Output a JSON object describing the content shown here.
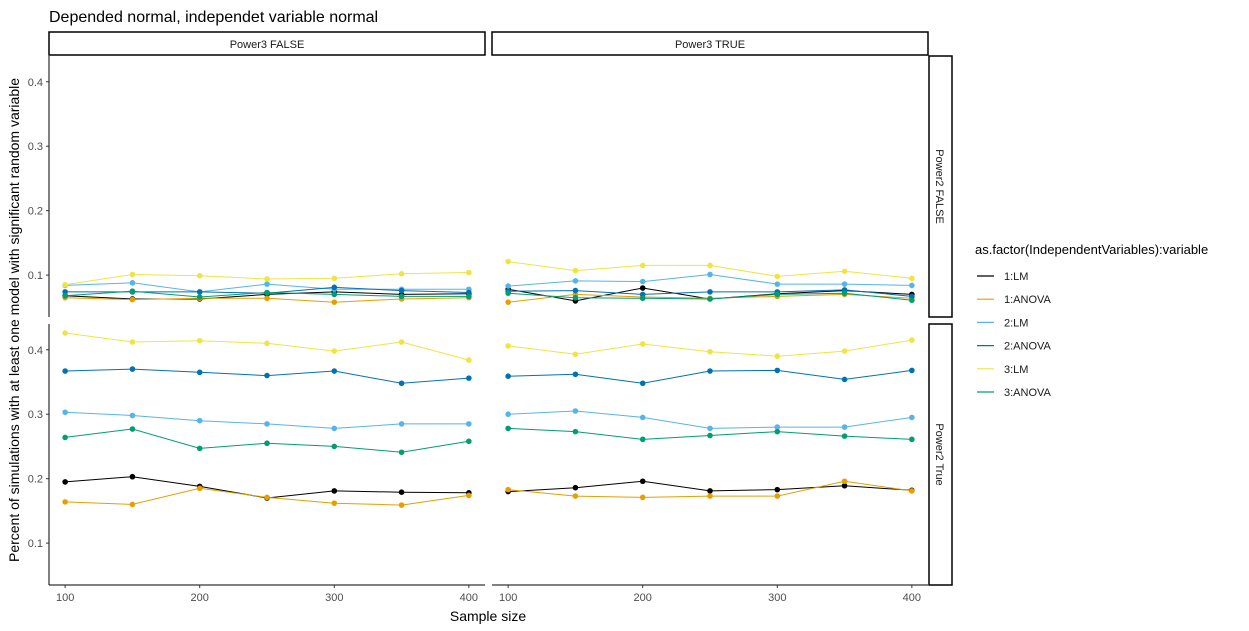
{
  "chart_data": {
    "type": "line",
    "title": "Depended normal, independet variable normal",
    "xlabel": "Sample size",
    "ylabel": "Percent of simulations with at least one model with significant random variable",
    "x": [
      100,
      150,
      200,
      250,
      300,
      350,
      400
    ],
    "x_ticks": [
      100,
      200,
      300,
      400
    ],
    "xlim": [
      88,
      412
    ],
    "ylim": [
      0.035,
      0.44
    ],
    "y_ticks": [
      0.1,
      0.2,
      0.3,
      0.4
    ],
    "grid": false,
    "legend_position": "right",
    "legend": {
      "title": "as.factor(IndependentVariables):variable",
      "entries": [
        {
          "label": "1:LM",
          "color": "#000000"
        },
        {
          "label": "1:ANOVA",
          "color": "#E69F00"
        },
        {
          "label": "2:LM",
          "color": "#56B4E9"
        },
        {
          "label": "2:ANOVA",
          "color": "#0072B2"
        },
        {
          "label": "3:LM",
          "color": "#F0E442"
        },
        {
          "label": "3:ANOVA",
          "color": "#009E73"
        }
      ]
    },
    "facets": {
      "columns": [
        "Power3 FALSE",
        "Power3 TRUE"
      ],
      "rows": [
        "Power2 FALSE",
        "Power2 True"
      ],
      "panels": [
        {
          "col": 0,
          "row": 0,
          "series": [
            {
              "name": "1:LM",
              "values": [
                0.068,
                0.063,
                0.063,
                0.07,
                0.074,
                0.07,
                0.071
              ]
            },
            {
              "name": "1:ANOVA",
              "values": [
                0.065,
                0.062,
                0.064,
                0.064,
                0.058,
                0.063,
                0.065
              ]
            },
            {
              "name": "2:LM",
              "values": [
                0.084,
                0.088,
                0.074,
                0.086,
                0.078,
                0.078,
                0.078
              ]
            },
            {
              "name": "2:ANOVA",
              "values": [
                0.074,
                0.074,
                0.074,
                0.072,
                0.081,
                0.076,
                0.073
              ]
            },
            {
              "name": "3:LM",
              "values": [
                0.085,
                0.101,
                0.099,
                0.094,
                0.095,
                0.102,
                0.104
              ]
            },
            {
              "name": "3:ANOVA",
              "values": [
                0.068,
                0.075,
                0.066,
                0.073,
                0.07,
                0.067,
                0.067
              ]
            }
          ]
        },
        {
          "col": 1,
          "row": 0,
          "series": [
            {
              "name": "1:LM",
              "values": [
                0.078,
                0.06,
                0.08,
                0.063,
                0.071,
                0.076,
                0.07
              ]
            },
            {
              "name": "1:ANOVA",
              "values": [
                0.058,
                0.07,
                0.066,
                0.064,
                0.067,
                0.07,
                0.064
              ]
            },
            {
              "name": "2:LM",
              "values": [
                0.083,
                0.091,
                0.09,
                0.101,
                0.086,
                0.086,
                0.084
              ]
            },
            {
              "name": "2:ANOVA",
              "values": [
                0.075,
                0.076,
                0.07,
                0.074,
                0.074,
                0.077,
                0.067
              ]
            },
            {
              "name": "3:LM",
              "values": [
                0.121,
                0.107,
                0.115,
                0.115,
                0.098,
                0.106,
                0.095
              ]
            },
            {
              "name": "3:ANOVA",
              "values": [
                0.072,
                0.065,
                0.064,
                0.063,
                0.07,
                0.072,
                0.061
              ]
            }
          ]
        },
        {
          "col": 0,
          "row": 1,
          "series": [
            {
              "name": "1:LM",
              "values": [
                0.195,
                0.203,
                0.188,
                0.17,
                0.181,
                0.179,
                0.178
              ]
            },
            {
              "name": "1:ANOVA",
              "values": [
                0.164,
                0.16,
                0.185,
                0.171,
                0.162,
                0.159,
                0.174
              ]
            },
            {
              "name": "2:LM",
              "values": [
                0.303,
                0.298,
                0.29,
                0.285,
                0.278,
                0.285,
                0.285
              ]
            },
            {
              "name": "2:ANOVA",
              "values": [
                0.367,
                0.37,
                0.365,
                0.36,
                0.367,
                0.348,
                0.356
              ]
            },
            {
              "name": "3:LM",
              "values": [
                0.426,
                0.412,
                0.414,
                0.41,
                0.398,
                0.412,
                0.384
              ]
            },
            {
              "name": "3:ANOVA",
              "values": [
                0.264,
                0.277,
                0.247,
                0.255,
                0.25,
                0.241,
                0.258
              ]
            }
          ]
        },
        {
          "col": 1,
          "row": 1,
          "series": [
            {
              "name": "1:LM",
              "values": [
                0.18,
                0.186,
                0.196,
                0.181,
                0.183,
                0.189,
                0.182
              ]
            },
            {
              "name": "1:ANOVA",
              "values": [
                0.183,
                0.173,
                0.171,
                0.173,
                0.173,
                0.196,
                0.181
              ]
            },
            {
              "name": "2:LM",
              "values": [
                0.3,
                0.305,
                0.295,
                0.278,
                0.28,
                0.28,
                0.295
              ]
            },
            {
              "name": "2:ANOVA",
              "values": [
                0.359,
                0.362,
                0.348,
                0.367,
                0.368,
                0.354,
                0.368
              ]
            },
            {
              "name": "3:LM",
              "values": [
                0.406,
                0.393,
                0.409,
                0.397,
                0.39,
                0.398,
                0.415
              ]
            },
            {
              "name": "3:ANOVA",
              "values": [
                0.278,
                0.273,
                0.261,
                0.267,
                0.273,
                0.266,
                0.261
              ]
            }
          ]
        }
      ]
    }
  }
}
